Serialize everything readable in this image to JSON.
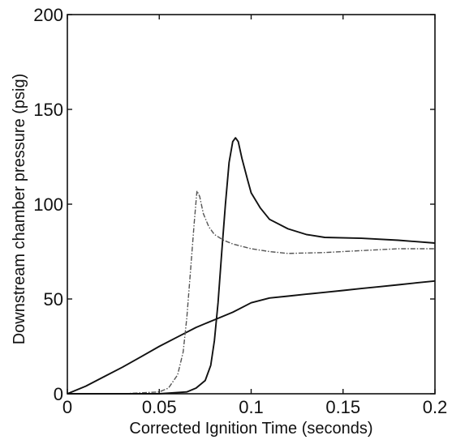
{
  "chart_data": {
    "type": "line",
    "title": "",
    "xlabel": "Corrected Ignition Time (seconds)",
    "ylabel": "Downstream chamber pressure (psig)",
    "xlim": [
      0,
      0.2
    ],
    "ylim": [
      0,
      200
    ],
    "xticks": [
      0,
      0.05,
      0.1,
      0.15,
      0.2
    ],
    "xtick_labels": [
      "0",
      "0.05",
      "0.1",
      "0.15",
      "0.2"
    ],
    "yticks": [
      0,
      50,
      100,
      150,
      200
    ],
    "ytick_labels": [
      "0",
      "50",
      "100",
      "150",
      "200"
    ],
    "grid": false,
    "legend": "none",
    "series": [
      {
        "color": "#111111",
        "style": "solid",
        "x": [
          0,
          0.01,
          0.02,
          0.03,
          0.04,
          0.05,
          0.06,
          0.07,
          0.08,
          0.09,
          0.1,
          0.11,
          0.12,
          0.13,
          0.14,
          0.15,
          0.16,
          0.17,
          0.18,
          0.19,
          0.2
        ],
        "y": [
          0,
          4,
          9,
          14,
          19.5,
          25,
          30,
          35,
          39,
          43,
          48,
          50.5,
          51.5,
          52.5,
          53.5,
          54.5,
          55.5,
          56.5,
          57.5,
          58.5,
          59.5
        ]
      },
      {
        "color": "#555555",
        "style": "dashdot",
        "x": [
          0,
          0.03,
          0.05,
          0.055,
          0.06,
          0.063,
          0.065,
          0.067,
          0.069,
          0.0705,
          0.072,
          0.074,
          0.077,
          0.08,
          0.085,
          0.09,
          0.1,
          0.11,
          0.12,
          0.14,
          0.16,
          0.18,
          0.2
        ],
        "y": [
          0,
          0,
          1,
          3,
          10,
          22,
          40,
          65,
          90,
          107,
          104,
          95,
          88,
          84,
          81,
          79,
          76.5,
          75,
          74,
          74.5,
          75.5,
          76.5,
          76.5
        ]
      },
      {
        "color": "#111111",
        "style": "solid",
        "x": [
          0,
          0.05,
          0.065,
          0.07,
          0.075,
          0.078,
          0.08,
          0.082,
          0.084,
          0.086,
          0.088,
          0.09,
          0.0915,
          0.093,
          0.095,
          0.098,
          0.1,
          0.105,
          0.11,
          0.12,
          0.13,
          0.14,
          0.16,
          0.18,
          0.2
        ],
        "y": [
          0,
          0,
          1,
          3,
          7,
          15,
          28,
          48,
          75,
          100,
          122,
          133,
          135,
          133,
          124,
          113,
          106,
          98,
          92,
          87,
          84,
          82.5,
          82,
          81,
          79.5
        ]
      }
    ]
  }
}
